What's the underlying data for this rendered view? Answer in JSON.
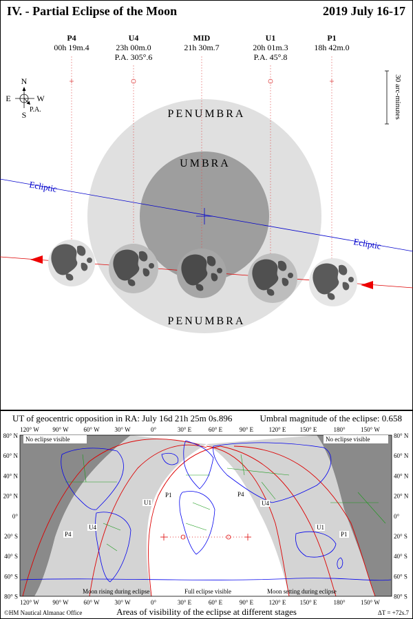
{
  "header": {
    "title": "IV. - Partial Eclipse of the Moon",
    "date": "2019 July 16-17"
  },
  "contacts": [
    {
      "id": "P4",
      "line1": "00h 19m.4",
      "line2": ""
    },
    {
      "id": "U4",
      "line1": "23h 00m.0",
      "line2": "P.A. 305°.6"
    },
    {
      "id": "MID",
      "line1": "21h 30m.7",
      "line2": ""
    },
    {
      "id": "U1",
      "line1": "20h 01m.3",
      "line2": "P.A. 45°.8"
    },
    {
      "id": "P1",
      "line1": "18h 42m.0",
      "line2": ""
    }
  ],
  "compass": {
    "north": "N",
    "south": "S",
    "east": "E",
    "west": "W",
    "pa": "P.A."
  },
  "scale_label": "30 arc-minutes",
  "labels": {
    "penumbra_top": "PENUMBRA",
    "penumbra_bottom": "PENUMBRA",
    "umbra": "UMBRA",
    "ecliptic": "Ecliptic"
  },
  "map": {
    "info_left": "UT of geocentric opposition in RA: July 16d 21h 25m 0s.896",
    "info_right": "Umbral magnitude of the eclipse: 0.658",
    "lon_labels": [
      "120° W",
      "90° W",
      "60° W",
      "30° W",
      "0°",
      "30° E",
      "60° E",
      "90° E",
      "120° E",
      "150° E",
      "180°",
      "150° W"
    ],
    "lat_labels": [
      "80° N",
      "60° N",
      "40° N",
      "20° N",
      "0°",
      "20° S",
      "40° S",
      "60° S",
      "80° S"
    ],
    "zone_labels": {
      "no_eclipse_left": "No eclipse visible",
      "no_eclipse_right": "No eclipse visible",
      "rising": "Moon rising during eclipse",
      "full": "Full eclipse visible",
      "setting": "Moon setting during eclipse"
    },
    "curve_labels": [
      "P4",
      "U4",
      "U1",
      "P1",
      "P4",
      "U4",
      "U1",
      "P1"
    ],
    "footer_left": "©HM Nautical Almanac Office",
    "footer_center": "Areas of visibility of the eclipse at different stages",
    "footer_right": "ΔT = +72s.7"
  },
  "colors": {
    "penumbra": "#e0e0e0",
    "umbra": "#9e9e9e",
    "ecliptic": "#0000cc",
    "path": "#dd0000",
    "moon_light": "#e2e2e2",
    "moon_dark": "#5a5a5a",
    "night": "#8a8a8a",
    "partial": "#d4d4d4",
    "coast": "#0000ee",
    "border": "#1a9a1a"
  }
}
